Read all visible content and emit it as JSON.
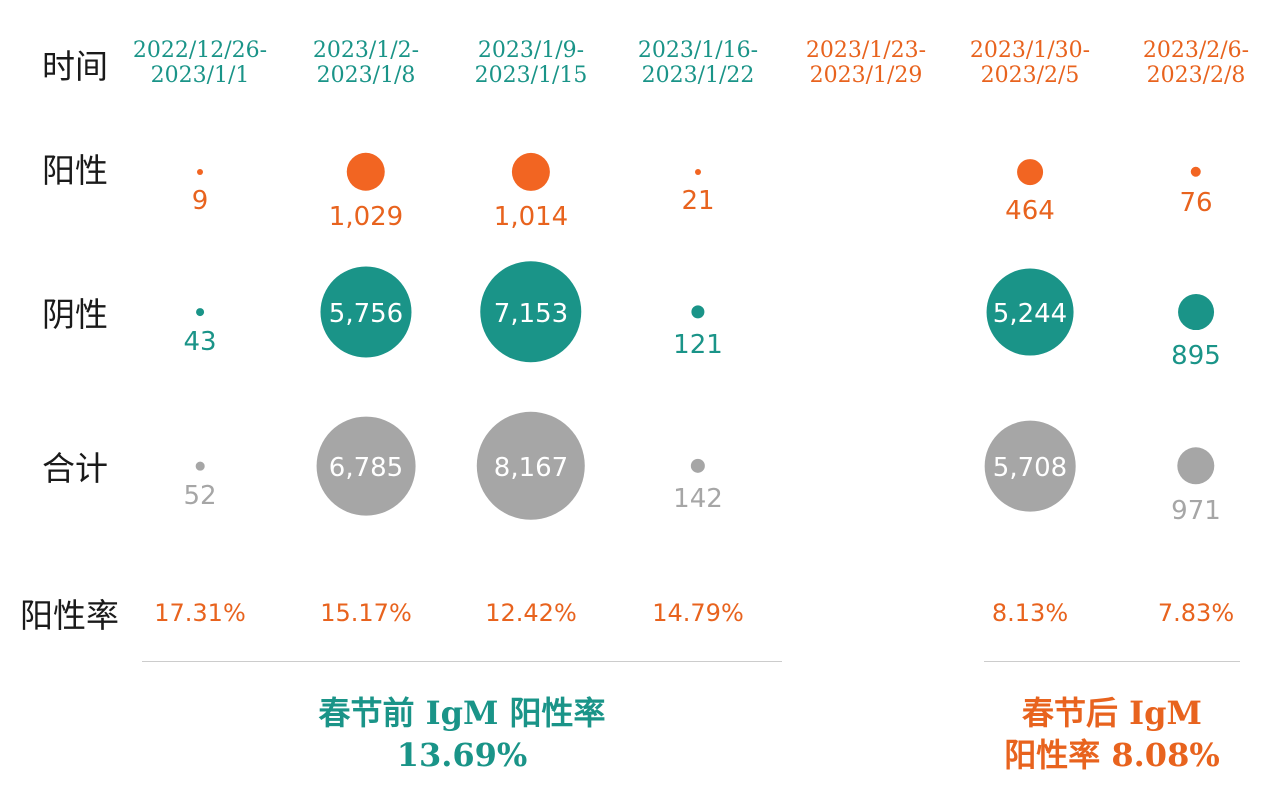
{
  "colors": {
    "teal": "#1a9488",
    "orange": "#f26522",
    "orange_text": "#e8631e",
    "gray": "#a6a6a6"
  },
  "chart_data": {
    "type": "bubble-table",
    "row_labels": {
      "time": "时间",
      "positive": "阳性",
      "negative": "阴性",
      "total": "合计",
      "rate": "阳性率"
    },
    "periods": [
      {
        "lines": [
          "2022/12/26-",
          "2023/1/1"
        ],
        "group": "before"
      },
      {
        "lines": [
          "2023/1/2-",
          "2023/1/8"
        ],
        "group": "before"
      },
      {
        "lines": [
          "2023/1/9-",
          "2023/1/15"
        ],
        "group": "before"
      },
      {
        "lines": [
          "2023/1/16-",
          "2023/1/22"
        ],
        "group": "before"
      },
      {
        "lines": [
          "2023/1/23-",
          "2023/1/29"
        ],
        "group": "after"
      },
      {
        "lines": [
          "2023/1/30-",
          "2023/2/5"
        ],
        "group": "after"
      },
      {
        "lines": [
          "2023/2/6-",
          "2023/2/8"
        ],
        "group": "after"
      }
    ],
    "positive": [
      9,
      1029,
      1014,
      21,
      null,
      464,
      76
    ],
    "positive_labels": [
      "9",
      "1,029",
      "1,014",
      "21",
      "",
      "464",
      "76"
    ],
    "negative": [
      43,
      5756,
      7153,
      121,
      null,
      5244,
      895
    ],
    "negative_labels": [
      "43",
      "5,756",
      "7,153",
      "121",
      "",
      "5,244",
      "895"
    ],
    "total": [
      52,
      6785,
      8167,
      142,
      null,
      5708,
      971
    ],
    "total_labels": [
      "52",
      "6,785",
      "8,167",
      "142",
      "",
      "5,708",
      "971"
    ],
    "rate_labels": [
      "17.31%",
      "15.17%",
      "12.42%",
      "14.79%",
      "",
      "8.13%",
      "7.83%"
    ]
  },
  "summary": {
    "before": {
      "line1": "春节前 IgM 阳性率",
      "line2": "13.69%"
    },
    "after": {
      "line1": "春节后 IgM",
      "line2": "阳性率 8.08%"
    }
  }
}
